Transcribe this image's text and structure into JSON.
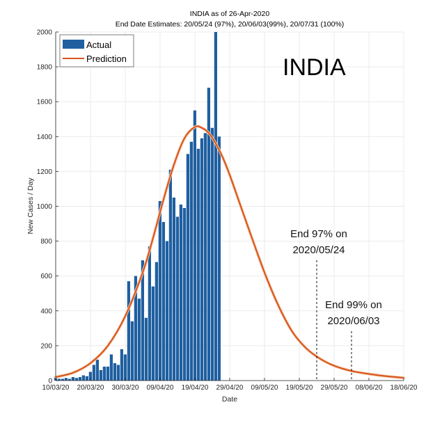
{
  "chart_data": {
    "type": "bar",
    "title": "INDIA as of 26-Apr-2020",
    "subtitle": "End Date Estimates: 20/05/24 (97%), 20/06/03(99%), 20/07/31 (100%)",
    "xlabel": "Date",
    "ylabel": "New Cases / Day",
    "ylim": [
      0,
      2000
    ],
    "yticks": [
      0,
      200,
      400,
      600,
      800,
      1000,
      1200,
      1400,
      1600,
      1800,
      2000
    ],
    "xlim_days": [
      0,
      100
    ],
    "x_start_date": "10/03/20",
    "xticks": [
      {
        "day": 0,
        "label": "10/03/20"
      },
      {
        "day": 10,
        "label": "20/03/20"
      },
      {
        "day": 20,
        "label": "30/03/20"
      },
      {
        "day": 30,
        "label": "09/04/20"
      },
      {
        "day": 40,
        "label": "19/04/20"
      },
      {
        "day": 50,
        "label": "29/04/20"
      },
      {
        "day": 60,
        "label": "09/05/20"
      },
      {
        "day": 70,
        "label": "19/05/20"
      },
      {
        "day": 80,
        "label": "29/05/20"
      },
      {
        "day": 90,
        "label": "08/06/20"
      },
      {
        "day": 100,
        "label": "18/06/20"
      }
    ],
    "grid": true,
    "legend_position": "top-left",
    "series": [
      {
        "name": "Actual",
        "type": "bar",
        "color": "#1f5fa0",
        "x_days": [
          0,
          1,
          2,
          3,
          4,
          5,
          6,
          7,
          8,
          9,
          10,
          11,
          12,
          13,
          14,
          15,
          16,
          17,
          18,
          19,
          20,
          21,
          22,
          23,
          24,
          25,
          26,
          27,
          28,
          29,
          30,
          31,
          32,
          33,
          34,
          35,
          36,
          37,
          38,
          39,
          40,
          41,
          42,
          43,
          44,
          45,
          46,
          47
        ],
        "values": [
          20,
          10,
          10,
          15,
          10,
          20,
          15,
          20,
          30,
          25,
          50,
          90,
          120,
          60,
          80,
          80,
          150,
          100,
          90,
          180,
          150,
          570,
          340,
          600,
          470,
          690,
          360,
          770,
          540,
          680,
          1030,
          910,
          800,
          1210,
          1050,
          940,
          1010,
          990,
          1300,
          1370,
          1550,
          1330,
          1390,
          1420,
          1680,
          1450,
          2000,
          1400
        ]
      },
      {
        "name": "Prediction",
        "type": "line",
        "color": "#d95319",
        "x_days": [
          0,
          5,
          10,
          15,
          20,
          25,
          28,
          31,
          34,
          37,
          40,
          42,
          44,
          46,
          48,
          50,
          53,
          56,
          60,
          64,
          68,
          72,
          76,
          80,
          85,
          90,
          95,
          100
        ],
        "values": [
          20,
          45,
          100,
          200,
          370,
          620,
          820,
          1040,
          1240,
          1390,
          1455,
          1450,
          1420,
          1360,
          1280,
          1180,
          1010,
          840,
          620,
          430,
          280,
          185,
          125,
          85,
          55,
          38,
          25,
          16
        ]
      }
    ],
    "annotations": [
      {
        "day": 75,
        "line1": "End 97% on",
        "line2": "2020/05/24"
      },
      {
        "day": 85,
        "line1": "End 99% on",
        "line2": "2020/06/03"
      }
    ],
    "big_label": "INDIA"
  }
}
